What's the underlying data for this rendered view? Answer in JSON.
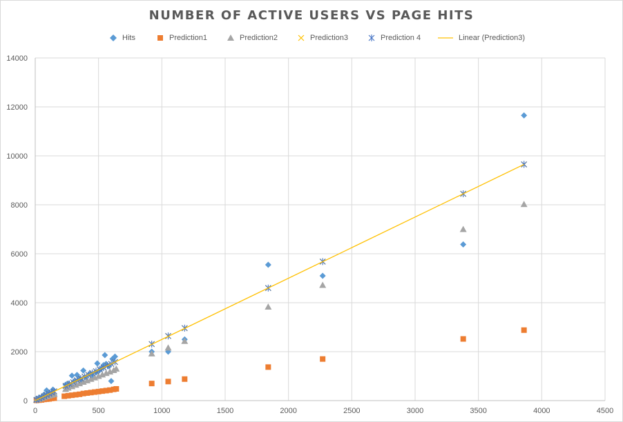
{
  "chart_data": {
    "type": "scatter",
    "title": "NUMBER OF ACTIVE USERS VS PAGE HITS",
    "xlabel": "",
    "ylabel": "",
    "xlim": [
      0,
      4500
    ],
    "ylim": [
      0,
      14000
    ],
    "xticks": [
      0,
      500,
      1000,
      1500,
      2000,
      2500,
      3000,
      3500,
      4000,
      4500
    ],
    "yticks": [
      0,
      2000,
      4000,
      6000,
      8000,
      10000,
      12000,
      14000
    ],
    "grid": true,
    "legend_position": "top",
    "series": [
      {
        "name": "Hits",
        "marker": "diamond",
        "color": "#5b9bd5",
        "points": [
          [
            10,
            80
          ],
          [
            30,
            120
          ],
          [
            50,
            150
          ],
          [
            70,
            250
          ],
          [
            80,
            200
          ],
          [
            90,
            420
          ],
          [
            100,
            180
          ],
          [
            110,
            300
          ],
          [
            120,
            250
          ],
          [
            130,
            200
          ],
          [
            140,
            450
          ],
          [
            150,
            220
          ],
          [
            240,
            650
          ],
          [
            260,
            700
          ],
          [
            280,
            600
          ],
          [
            290,
            1020
          ],
          [
            310,
            800
          ],
          [
            330,
            1050
          ],
          [
            350,
            900
          ],
          [
            370,
            800
          ],
          [
            380,
            1230
          ],
          [
            400,
            950
          ],
          [
            430,
            1100
          ],
          [
            450,
            1000
          ],
          [
            480,
            1150
          ],
          [
            490,
            1520
          ],
          [
            500,
            1200
          ],
          [
            520,
            1300
          ],
          [
            540,
            1450
          ],
          [
            550,
            1860
          ],
          [
            560,
            1500
          ],
          [
            580,
            1400
          ],
          [
            600,
            800
          ],
          [
            610,
            1700
          ],
          [
            630,
            1800
          ],
          [
            920,
            2000
          ],
          [
            1050,
            2000
          ],
          [
            1180,
            2500
          ],
          [
            1840,
            5550
          ],
          [
            2270,
            5100
          ],
          [
            3380,
            6380
          ],
          [
            3860,
            11650
          ]
        ]
      },
      {
        "name": "Prediction1",
        "marker": "square",
        "color": "#ed7d31",
        "points": [
          [
            10,
            10
          ],
          [
            30,
            20
          ],
          [
            50,
            30
          ],
          [
            70,
            50
          ],
          [
            90,
            60
          ],
          [
            110,
            70
          ],
          [
            130,
            90
          ],
          [
            150,
            100
          ],
          [
            230,
            180
          ],
          [
            260,
            200
          ],
          [
            290,
            220
          ],
          [
            320,
            240
          ],
          [
            350,
            260
          ],
          [
            380,
            290
          ],
          [
            410,
            310
          ],
          [
            440,
            330
          ],
          [
            470,
            350
          ],
          [
            500,
            370
          ],
          [
            530,
            390
          ],
          [
            560,
            410
          ],
          [
            590,
            430
          ],
          [
            620,
            460
          ],
          [
            640,
            480
          ],
          [
            920,
            700
          ],
          [
            1050,
            780
          ],
          [
            1180,
            880
          ],
          [
            1840,
            1370
          ],
          [
            2270,
            1700
          ],
          [
            3380,
            2520
          ],
          [
            3860,
            2880
          ]
        ]
      },
      {
        "name": "Prediction2",
        "marker": "triangle",
        "color": "#a5a5a5",
        "points": [
          [
            10,
            40
          ],
          [
            30,
            60
          ],
          [
            50,
            90
          ],
          [
            70,
            130
          ],
          [
            90,
            170
          ],
          [
            110,
            200
          ],
          [
            130,
            230
          ],
          [
            150,
            260
          ],
          [
            240,
            470
          ],
          [
            260,
            520
          ],
          [
            290,
            580
          ],
          [
            320,
            640
          ],
          [
            350,
            700
          ],
          [
            380,
            760
          ],
          [
            410,
            820
          ],
          [
            440,
            880
          ],
          [
            470,
            940
          ],
          [
            500,
            1000
          ],
          [
            530,
            1060
          ],
          [
            560,
            1120
          ],
          [
            590,
            1180
          ],
          [
            620,
            1240
          ],
          [
            640,
            1300
          ],
          [
            920,
            1920
          ],
          [
            1050,
            2160
          ],
          [
            1180,
            2430
          ],
          [
            1840,
            3830
          ],
          [
            2270,
            4720
          ],
          [
            3380,
            7000
          ],
          [
            3860,
            8020
          ]
        ]
      },
      {
        "name": "Prediction3",
        "marker": "x",
        "color": "#ffc000",
        "points": [
          [
            10,
            30
          ],
          [
            30,
            80
          ],
          [
            50,
            130
          ],
          [
            70,
            180
          ],
          [
            90,
            230
          ],
          [
            110,
            280
          ],
          [
            130,
            330
          ],
          [
            150,
            380
          ],
          [
            240,
            600
          ],
          [
            270,
            680
          ],
          [
            300,
            750
          ],
          [
            330,
            830
          ],
          [
            360,
            900
          ],
          [
            390,
            980
          ],
          [
            420,
            1050
          ],
          [
            450,
            1130
          ],
          [
            480,
            1200
          ],
          [
            510,
            1280
          ],
          [
            540,
            1350
          ],
          [
            570,
            1430
          ],
          [
            600,
            1500
          ],
          [
            630,
            1580
          ],
          [
            920,
            2310
          ],
          [
            1050,
            2640
          ],
          [
            1180,
            2960
          ],
          [
            1840,
            4600
          ],
          [
            2270,
            5680
          ],
          [
            3380,
            8450
          ],
          [
            3860,
            9650
          ]
        ]
      },
      {
        "name": "Prediction 4",
        "marker": "asterisk",
        "color": "#4472c4",
        "points": [
          [
            10,
            30
          ],
          [
            30,
            80
          ],
          [
            50,
            130
          ],
          [
            70,
            180
          ],
          [
            90,
            230
          ],
          [
            110,
            280
          ],
          [
            130,
            330
          ],
          [
            150,
            380
          ],
          [
            240,
            600
          ],
          [
            270,
            680
          ],
          [
            300,
            750
          ],
          [
            330,
            830
          ],
          [
            360,
            900
          ],
          [
            390,
            980
          ],
          [
            420,
            1050
          ],
          [
            450,
            1130
          ],
          [
            480,
            1200
          ],
          [
            510,
            1280
          ],
          [
            540,
            1350
          ],
          [
            570,
            1430
          ],
          [
            600,
            1500
          ],
          [
            630,
            1580
          ],
          [
            920,
            2310
          ],
          [
            1050,
            2640
          ],
          [
            1180,
            2960
          ],
          [
            1840,
            4600
          ],
          [
            2270,
            5680
          ],
          [
            3380,
            8450
          ],
          [
            3860,
            9650
          ]
        ]
      },
      {
        "name": "Linear (Prediction3)",
        "marker": "line",
        "color": "#ffc000",
        "points": [
          [
            0,
            0
          ],
          [
            3860,
            9650
          ]
        ]
      }
    ]
  }
}
